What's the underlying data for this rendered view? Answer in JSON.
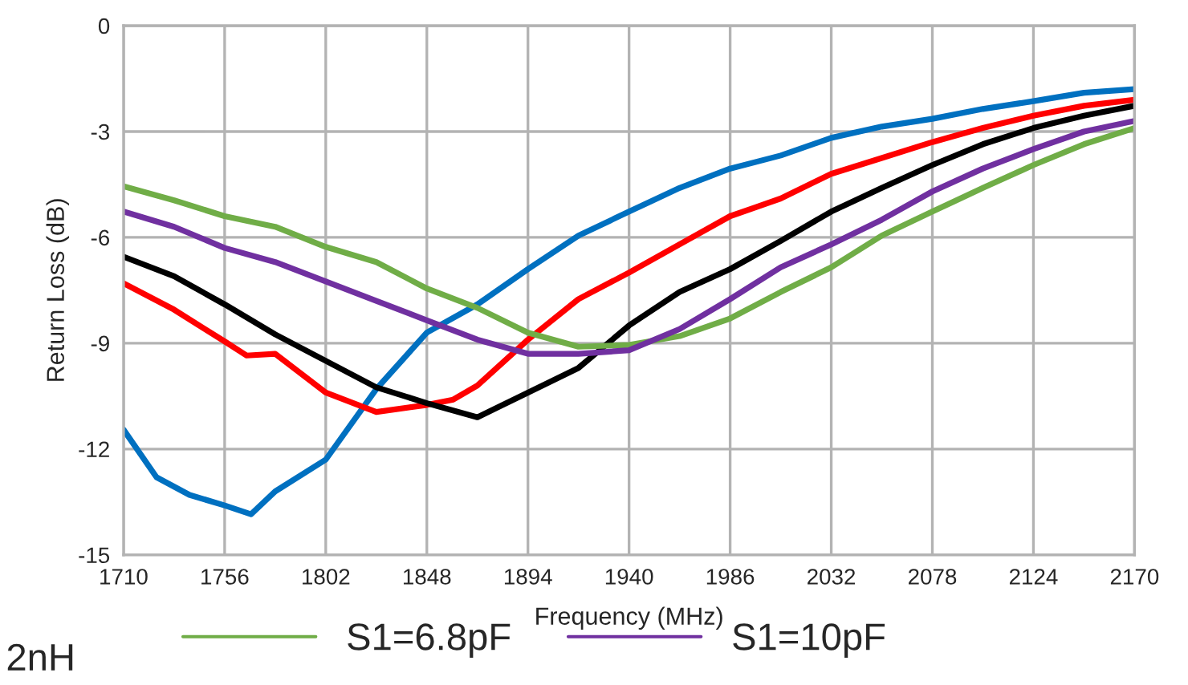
{
  "chart_data": {
    "type": "line",
    "xlabel": "Frequency (MHz)",
    "ylabel": "Return Loss (dB)",
    "xlim": [
      1710,
      2170
    ],
    "xticks": [
      1710,
      1756,
      1802,
      1848,
      1894,
      1940,
      1986,
      2032,
      2078,
      2124,
      2170
    ],
    "ylim": [
      -15,
      0
    ],
    "yticks": [
      -15,
      -12,
      -9,
      -6,
      -3,
      0
    ],
    "grid": true,
    "legend": "bottom",
    "marker": "none",
    "line_style": "solid",
    "annotations": [
      "2nH"
    ],
    "series": [
      {
        "color": "#0070c0",
        "x": [
          1710,
          1725,
          1740,
          1756,
          1768,
          1779,
          1802,
          1825,
          1848,
          1871,
          1894,
          1917,
          1940,
          1963,
          1986,
          2009,
          2032,
          2055,
          2078,
          2101,
          2124,
          2147,
          2170
        ],
        "values": [
          -11.45,
          -12.8,
          -13.3,
          -13.6,
          -13.85,
          -13.2,
          -12.3,
          -10.3,
          -8.7,
          -7.9,
          -6.9,
          -5.95,
          -5.27,
          -4.6,
          -4.05,
          -3.68,
          -3.18,
          -2.86,
          -2.64,
          -2.36,
          -2.14,
          -1.9,
          -1.8
        ]
      },
      {
        "color": "#ff0000",
        "x": [
          1710,
          1733,
          1756,
          1766,
          1779,
          1802,
          1825,
          1848,
          1860,
          1871,
          1894,
          1917,
          1940,
          1963,
          1986,
          2009,
          2032,
          2055,
          2078,
          2101,
          2124,
          2147,
          2170
        ],
        "values": [
          -7.3,
          -8.05,
          -8.95,
          -9.35,
          -9.3,
          -10.4,
          -10.95,
          -10.75,
          -10.6,
          -10.2,
          -8.9,
          -7.75,
          -7.0,
          -6.2,
          -5.4,
          -4.9,
          -4.2,
          -3.75,
          -3.3,
          -2.9,
          -2.55,
          -2.27,
          -2.1
        ]
      },
      {
        "color": "#000000",
        "x": [
          1710,
          1733,
          1756,
          1779,
          1802,
          1825,
          1848,
          1871,
          1894,
          1917,
          1940,
          1963,
          1986,
          2009,
          2032,
          2055,
          2078,
          2101,
          2124,
          2147,
          2170
        ],
        "values": [
          -6.55,
          -7.1,
          -7.9,
          -8.75,
          -9.5,
          -10.25,
          -10.7,
          -11.1,
          -10.4,
          -9.7,
          -8.5,
          -7.55,
          -6.9,
          -6.1,
          -5.27,
          -4.6,
          -3.95,
          -3.36,
          -2.9,
          -2.55,
          -2.27
        ]
      },
      {
        "name": "S1=6.8pF",
        "color": "#70ad47",
        "x": [
          1710,
          1733,
          1756,
          1779,
          1802,
          1825,
          1848,
          1871,
          1894,
          1917,
          1940,
          1963,
          1986,
          2009,
          2032,
          2055,
          2078,
          2101,
          2124,
          2147,
          2170
        ],
        "values": [
          -4.55,
          -4.95,
          -5.4,
          -5.7,
          -6.27,
          -6.7,
          -7.45,
          -8.0,
          -8.7,
          -9.1,
          -9.05,
          -8.8,
          -8.3,
          -7.55,
          -6.85,
          -5.95,
          -5.27,
          -4.6,
          -3.95,
          -3.36,
          -2.9
        ]
      },
      {
        "name": "S1=10pF",
        "color": "#7030a0",
        "x": [
          1710,
          1733,
          1756,
          1779,
          1802,
          1825,
          1848,
          1871,
          1894,
          1917,
          1940,
          1963,
          1986,
          2009,
          2032,
          2055,
          2078,
          2101,
          2124,
          2147,
          2170
        ],
        "values": [
          -5.27,
          -5.7,
          -6.3,
          -6.7,
          -7.25,
          -7.8,
          -8.35,
          -8.9,
          -9.3,
          -9.3,
          -9.2,
          -8.6,
          -7.75,
          -6.85,
          -6.2,
          -5.5,
          -4.7,
          -4.05,
          -3.5,
          -3.0,
          -2.7
        ]
      }
    ]
  }
}
